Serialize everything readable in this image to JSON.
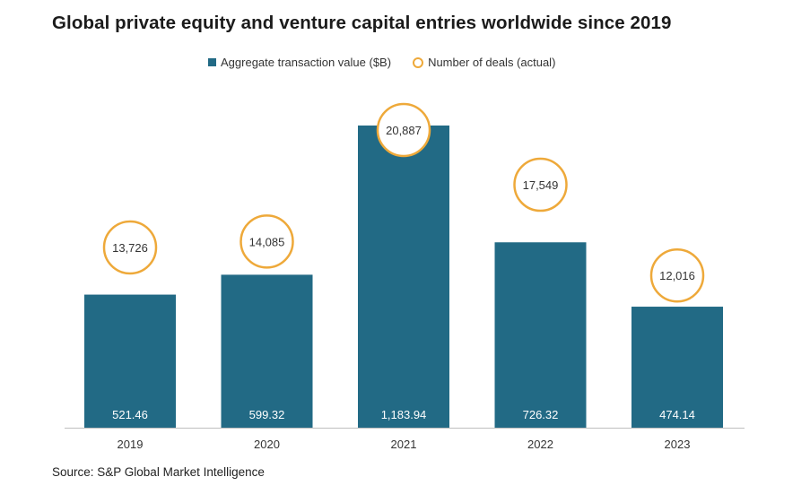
{
  "chart_data": {
    "type": "bar",
    "title": "Global private equity and venture capital entries worldwide since 2019",
    "categories": [
      "2019",
      "2020",
      "2021",
      "2022",
      "2023"
    ],
    "series": [
      {
        "name": "Aggregate transaction value ($B)",
        "type": "bar",
        "values": [
          521.46,
          599.32,
          1183.94,
          726.32,
          474.14
        ],
        "labels": [
          "521.46",
          "599.32",
          "1,183.94",
          "726.32",
          "474.14"
        ],
        "color": "#226a85"
      },
      {
        "name": "Number of deals (actual)",
        "type": "circle-marker",
        "values": [
          13726,
          14085,
          20887,
          17549,
          12016
        ],
        "labels": [
          "13,726",
          "14,085",
          "20,887",
          "17,549",
          "12,016"
        ],
        "color": "#eea93a"
      }
    ],
    "legend_position": "top-center",
    "grid": false
  },
  "source": "Source: S&P Global Market Intelligence"
}
